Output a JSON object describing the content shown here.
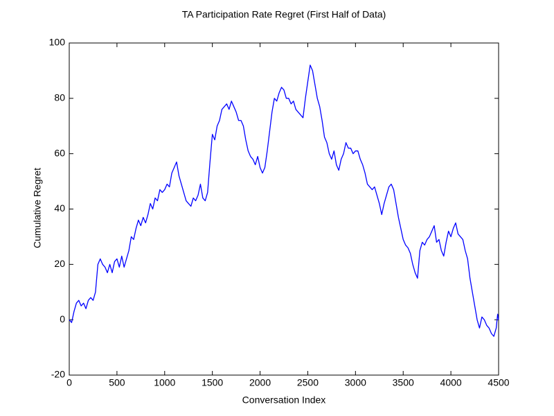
{
  "chart_data": {
    "type": "line",
    "title": "TA Participation Rate Regret (First Half of Data)",
    "x_label": "Conversation Index",
    "y_label": "Cumulative Regret",
    "x": [
      0,
      25,
      50,
      75,
      100,
      125,
      150,
      175,
      200,
      225,
      250,
      275,
      300,
      325,
      350,
      375,
      400,
      425,
      450,
      475,
      500,
      525,
      550,
      575,
      600,
      625,
      650,
      675,
      700,
      725,
      750,
      775,
      800,
      825,
      850,
      875,
      900,
      925,
      950,
      975,
      1000,
      1025,
      1050,
      1075,
      1100,
      1125,
      1150,
      1175,
      1200,
      1225,
      1250,
      1275,
      1300,
      1325,
      1350,
      1375,
      1400,
      1425,
      1450,
      1475,
      1500,
      1525,
      1550,
      1575,
      1600,
      1625,
      1650,
      1675,
      1700,
      1725,
      1750,
      1775,
      1800,
      1825,
      1850,
      1875,
      1900,
      1925,
      1950,
      1975,
      2000,
      2025,
      2050,
      2075,
      2100,
      2125,
      2150,
      2175,
      2200,
      2225,
      2250,
      2275,
      2300,
      2325,
      2350,
      2375,
      2400,
      2425,
      2450,
      2475,
      2500,
      2525,
      2550,
      2575,
      2600,
      2625,
      2650,
      2675,
      2700,
      2725,
      2750,
      2775,
      2800,
      2825,
      2850,
      2875,
      2900,
      2925,
      2950,
      2975,
      3000,
      3025,
      3050,
      3075,
      3100,
      3125,
      3150,
      3175,
      3200,
      3225,
      3250,
      3275,
      3300,
      3325,
      3350,
      3375,
      3400,
      3425,
      3450,
      3475,
      3500,
      3525,
      3550,
      3575,
      3600,
      3625,
      3650,
      3675,
      3700,
      3725,
      3750,
      3775,
      3800,
      3825,
      3850,
      3875,
      3900,
      3925,
      3950,
      3975,
      4000,
      4025,
      4050,
      4075,
      4100,
      4125,
      4150,
      4175,
      4200,
      4225,
      4250,
      4275,
      4300,
      4325,
      4350,
      4375,
      4400,
      4425,
      4450,
      4475,
      4490,
      4500
    ],
    "values": [
      0,
      -1,
      3,
      6,
      7,
      5,
      6,
      4,
      7,
      8,
      7,
      10,
      20,
      22,
      20,
      19,
      17,
      20,
      17,
      21,
      22,
      19,
      23,
      19,
      22,
      25,
      30,
      29,
      33,
      36,
      34,
      37,
      35,
      38,
      42,
      40,
      44,
      43,
      47,
      46,
      47,
      49,
      48,
      53,
      55,
      57,
      52,
      49,
      46,
      43,
      42,
      41,
      44,
      43,
      45,
      49,
      44,
      43,
      46,
      57,
      67,
      65,
      70,
      72,
      76,
      77,
      78,
      76,
      79,
      77,
      75,
      72,
      72,
      70,
      65,
      61,
      59,
      58,
      56,
      59,
      55,
      53,
      55,
      61,
      68,
      75,
      80,
      79,
      82,
      84,
      83,
      80,
      80,
      78,
      79,
      76,
      75,
      74,
      73,
      80,
      86,
      92,
      90,
      85,
      80,
      77,
      72,
      66,
      64,
      60,
      58,
      61,
      56,
      54,
      58,
      60,
      64,
      62,
      62,
      60,
      61,
      61,
      58,
      56,
      53,
      49,
      48,
      47,
      48,
      45,
      42,
      38,
      42,
      45,
      48,
      49,
      47,
      42,
      37,
      33,
      29,
      27,
      26,
      24,
      20,
      17,
      15,
      25,
      28,
      27,
      29,
      30,
      32,
      34,
      28,
      29,
      25,
      23,
      28,
      32,
      30,
      33,
      35,
      31,
      30,
      29,
      25,
      22,
      15,
      10,
      5,
      0,
      -3,
      1,
      0,
      -2,
      -3,
      -5,
      -6,
      -3,
      2,
      0
    ],
    "color": "#0000ff",
    "xlim": [
      0,
      4500
    ],
    "xticks": [
      0,
      500,
      1000,
      1500,
      2000,
      2500,
      3000,
      3500,
      4000,
      4500
    ],
    "ylim": [
      -20,
      100
    ],
    "yticks": [
      -20,
      0,
      20,
      40,
      60,
      80,
      100
    ]
  }
}
